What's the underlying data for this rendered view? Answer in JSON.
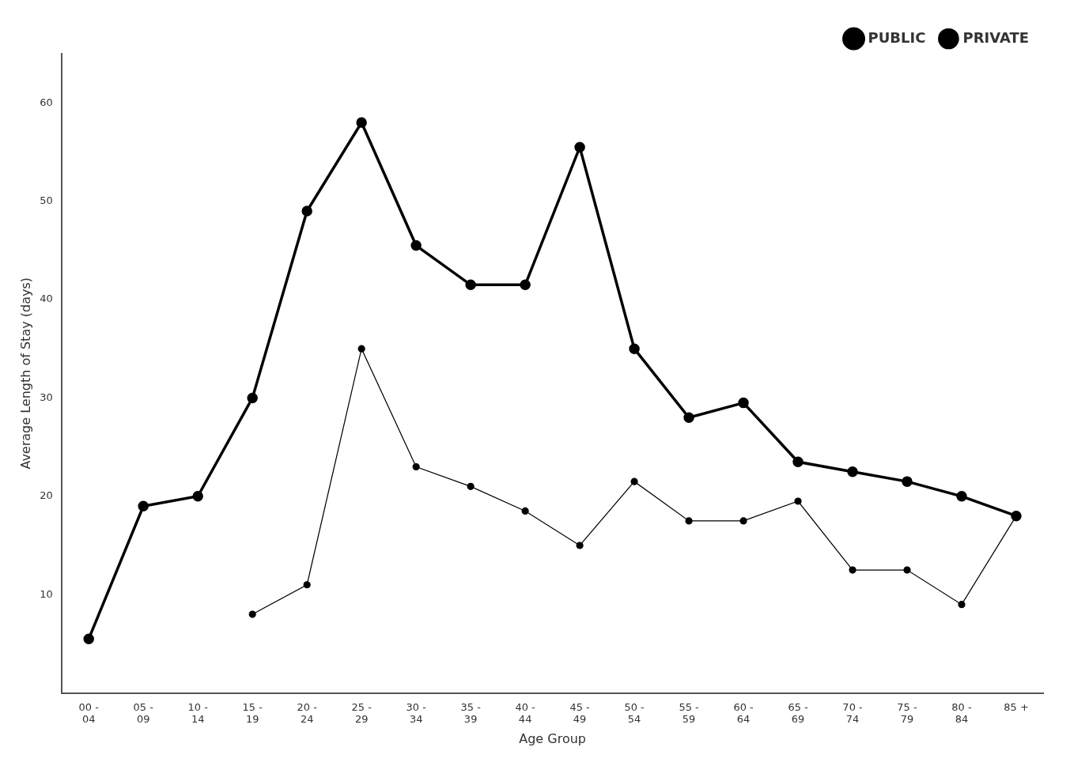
{
  "chart_data": {
    "type": "line",
    "xlabel": "Age Group",
    "ylabel": "Average Length of Stay (days)",
    "categories": [
      "00 -\n04",
      "05 -\n09",
      "10 -\n14",
      "15 -\n19",
      "20 -\n24",
      "25 -\n29",
      "30 -\n34",
      "35 -\n39",
      "40 -\n44",
      "45 -\n49",
      "50 -\n54",
      "55 -\n59",
      "60 -\n64",
      "65 -\n69",
      "70 -\n74",
      "75 -\n79",
      "80 -\n84",
      "85 +"
    ],
    "series": [
      {
        "name": "PUBLIC",
        "color": "#000000",
        "values": [
          5.5,
          19.0,
          20.0,
          30.0,
          49.0,
          58.0,
          45.5,
          41.5,
          41.5,
          55.5,
          35.0,
          28.0,
          29.5,
          23.5,
          22.5,
          21.5,
          20.0,
          18.0
        ]
      },
      {
        "name": "PRIVATE",
        "color": "#000000",
        "values": [
          null,
          null,
          null,
          8.0,
          11.0,
          35.0,
          23.0,
          21.0,
          18.5,
          15.0,
          21.5,
          17.5,
          17.5,
          19.5,
          12.5,
          12.5,
          9.0,
          18.0
        ]
      }
    ],
    "ylim": [
      0,
      65
    ],
    "yticks": [
      10,
      20,
      30,
      40,
      50,
      60
    ],
    "grid": false,
    "legend": "upper right",
    "marker": "circle"
  }
}
